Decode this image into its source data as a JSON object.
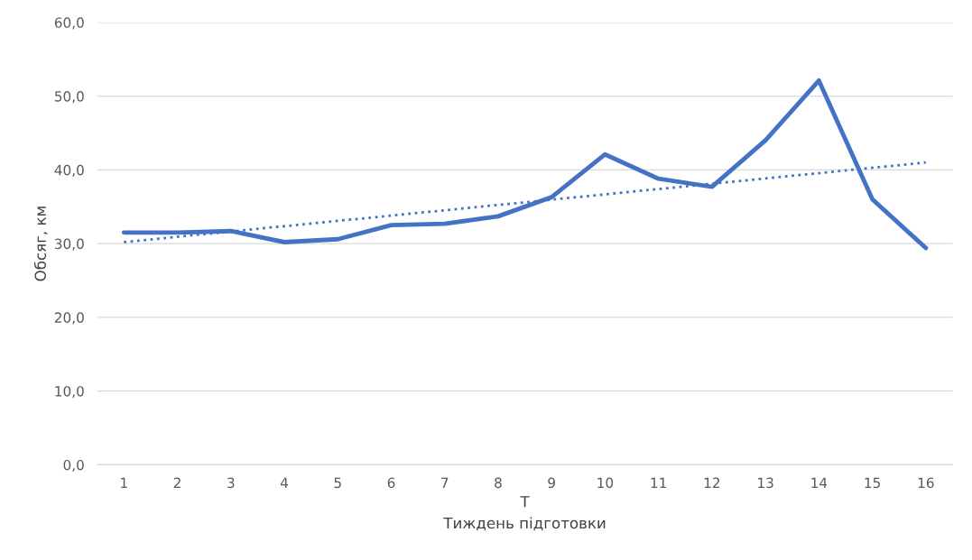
{
  "chart_data": {
    "type": "line",
    "xlabel": "T\nТиждень підготовки",
    "ylabel": "Обсяг, км",
    "x": [
      1,
      2,
      3,
      4,
      5,
      6,
      7,
      8,
      9,
      10,
      11,
      12,
      13,
      14,
      15,
      16
    ],
    "xlim": [
      0.5,
      16.5
    ],
    "xticks": [
      1,
      2,
      3,
      4,
      5,
      6,
      7,
      8,
      9,
      10,
      11,
      12,
      13,
      14,
      15,
      16
    ],
    "ylim": [
      0,
      60
    ],
    "yticks": [
      {
        "value": 0,
        "label": "0,0"
      },
      {
        "value": 10,
        "label": "10,0"
      },
      {
        "value": 20,
        "label": "20,0"
      },
      {
        "value": 30,
        "label": "30,0"
      },
      {
        "value": 40,
        "label": "40,0"
      },
      {
        "value": 50,
        "label": "50,0"
      },
      {
        "value": 60,
        "label": "60,0"
      }
    ],
    "grid": "y",
    "legend": false,
    "series": [
      {
        "color": "#4472c4",
        "line_style": "solid",
        "values": [
          31.5,
          31.5,
          31.7,
          30.2,
          30.6,
          32.5,
          32.7,
          33.7,
          36.3,
          42.1,
          38.8,
          37.7,
          44.0,
          52.1,
          36.0,
          29.4
        ]
      },
      {
        "type": "line",
        "color": "#4472c4",
        "line_style": "dotted",
        "x": [
          1,
          16
        ],
        "values": [
          30.2,
          41.0
        ]
      }
    ]
  }
}
